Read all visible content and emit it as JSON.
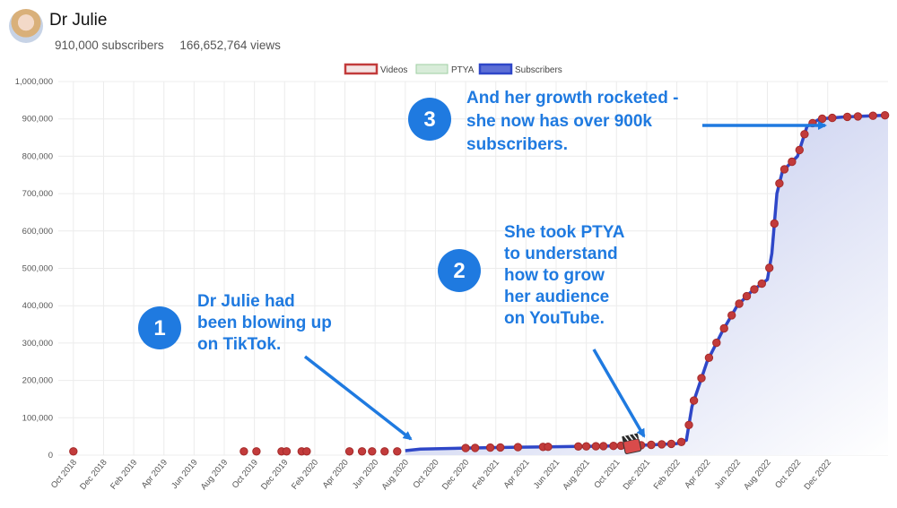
{
  "channel": {
    "name": "Dr Julie",
    "subscribers_text": "910,000 subscribers",
    "views_text": "166,652,764 views"
  },
  "legend": [
    "Videos",
    "PTYA",
    "Subscribers"
  ],
  "colors": {
    "videos": "#c23b3b",
    "ptya": "#d8ecd9",
    "subscribers": "#2f47c8",
    "fill": "#c9cfee",
    "annotation": "#1f7ae0"
  },
  "annotations": [
    {
      "number": "1",
      "lines": [
        "Dr Julie had",
        "been blowing up",
        "on TikTok."
      ]
    },
    {
      "number": "2",
      "lines": [
        "She took PTYA",
        "to understand",
        "how to grow",
        "her audience",
        "on YouTube."
      ]
    },
    {
      "number": "3",
      "lines": [
        "And her growth rocketed -",
        "she now has over 900k",
        "subscribers."
      ]
    }
  ],
  "chart_data": {
    "type": "line",
    "y_ticks": [
      "1,000,000",
      "900,000",
      "800,000",
      "700,000",
      "600,000",
      "500,000",
      "400,000",
      "300,000",
      "200,000",
      "100,000",
      "0"
    ],
    "ylim": [
      0,
      1000000
    ],
    "x_ticks": [
      "Oct 2018",
      "Dec 2018",
      "Feb 2019",
      "Apr 2019",
      "Jun 2019",
      "Aug 2019",
      "Oct 2019",
      "Dec 2019",
      "Feb 2020",
      "Apr 2020",
      "Jun 2020",
      "Aug 2020",
      "Oct 2020",
      "Dec 2020",
      "Feb 2021",
      "Apr 2021",
      "Jun 2021",
      "Aug 2021",
      "Oct 2021",
      "Dec 2021",
      "Feb 2022",
      "Apr 2022",
      "Jun 2022",
      "Aug 2022",
      "Oct 2022",
      "Dec 2022"
    ],
    "xlim_months": [
      "2018-09",
      "2023-04"
    ],
    "grid": true,
    "legend_position": "top-center",
    "series": [
      {
        "name": "Subscribers",
        "points": [
          [
            "2020-08-01",
            12000
          ],
          [
            "2020-09-01",
            16000
          ],
          [
            "2020-12-01",
            19000
          ],
          [
            "2021-03-01",
            21000
          ],
          [
            "2021-06-01",
            22500
          ],
          [
            "2021-09-01",
            24000
          ],
          [
            "2021-12-01",
            27000
          ],
          [
            "2022-02-01",
            31000
          ],
          [
            "2022-02-20",
            40000
          ],
          [
            "2022-03-01",
            130000
          ],
          [
            "2022-04-01",
            250000
          ],
          [
            "2022-05-01",
            330000
          ],
          [
            "2022-06-01",
            400000
          ],
          [
            "2022-07-01",
            440000
          ],
          [
            "2022-08-01",
            470000
          ],
          [
            "2022-08-10",
            540000
          ],
          [
            "2022-08-20",
            700000
          ],
          [
            "2022-09-01",
            760000
          ],
          [
            "2022-10-01",
            800000
          ],
          [
            "2022-10-20",
            880000
          ],
          [
            "2022-11-15",
            900000
          ],
          [
            "2023-01-01",
            905000
          ],
          [
            "2023-03-31",
            910000
          ]
        ]
      },
      {
        "name": "Videos",
        "dates": [
          "2018-10-01",
          "2019-09-10",
          "2019-10-05",
          "2019-11-25",
          "2019-12-05",
          "2020-01-05",
          "2020-01-15",
          "2020-04-10",
          "2020-05-05",
          "2020-05-25",
          "2020-06-20",
          "2020-07-15",
          "2020-12-01",
          "2020-12-20",
          "2021-01-20",
          "2021-02-10",
          "2021-03-15",
          "2021-05-05",
          "2021-05-15",
          "2021-07-15",
          "2021-08-01",
          "2021-08-20",
          "2021-09-05",
          "2021-09-25",
          "2021-10-10",
          "2021-11-01",
          "2021-11-20",
          "2021-12-10",
          "2022-01-01",
          "2022-01-20",
          "2022-02-10",
          "2022-02-25",
          "2022-03-05",
          "2022-03-20",
          "2022-04-05",
          "2022-04-20",
          "2022-05-05",
          "2022-05-20",
          "2022-06-05",
          "2022-06-20",
          "2022-07-05",
          "2022-07-20",
          "2022-08-05",
          "2022-08-15",
          "2022-08-25",
          "2022-09-05",
          "2022-09-20",
          "2022-10-05",
          "2022-10-15",
          "2022-11-01",
          "2022-11-20",
          "2022-12-10",
          "2023-01-10",
          "2023-02-01",
          "2023-03-01",
          "2023-03-25"
        ]
      },
      {
        "name": "PTYA",
        "dates": [
          "2021-11-01"
        ]
      }
    ]
  }
}
